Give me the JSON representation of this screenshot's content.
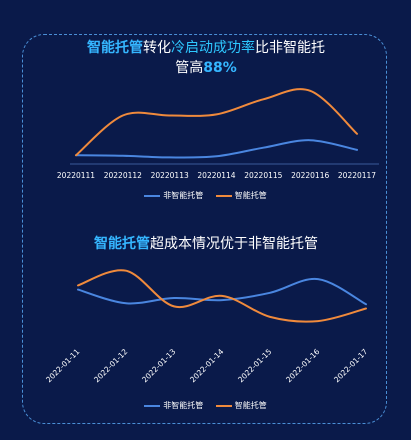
{
  "title1": {
    "part1": "智能托管",
    "part2": "转化",
    "part3": "冷启动成功率",
    "part4": "比非智能托",
    "line2a": "管高",
    "line2b": "88%"
  },
  "title2": {
    "part1": "智能托管",
    "part2": "超成本情况优于非智能托管"
  },
  "colors": {
    "series_a": "#4a86e0",
    "series_b": "#f08a3c",
    "highlight": "#35b6ff"
  },
  "chart_data": [
    {
      "type": "line",
      "categories": [
        "20220111",
        "20220112",
        "20220113",
        "20220114",
        "20220115",
        "20220116",
        "20220117"
      ],
      "series": [
        {
          "name": "非智能托管",
          "values": [
            10,
            9.5,
            8,
            9,
            17,
            24,
            15
          ],
          "color": "#4a86e0"
        },
        {
          "name": "智能托管",
          "values": [
            10,
            47,
            47,
            48,
            62,
            70,
            30
          ],
          "color": "#f08a3c"
        }
      ],
      "ylim": [
        0,
        80
      ],
      "legend": "bottom"
    },
    {
      "type": "line",
      "categories": [
        "2022-01-11",
        "2022-01-12",
        "2022-01-13",
        "2022-01-14",
        "2022-01-15",
        "2022-01-16",
        "2022-01-17"
      ],
      "series": [
        {
          "name": "非智能托管",
          "values": [
            48,
            35,
            40,
            38,
            45,
            58,
            34
          ],
          "color": "#4a86e0"
        },
        {
          "name": "智能托管",
          "values": [
            52,
            66,
            32,
            42,
            22,
            18,
            30
          ],
          "color": "#f08a3c"
        }
      ],
      "ylim": [
        0,
        80
      ],
      "legend": "bottom"
    }
  ]
}
